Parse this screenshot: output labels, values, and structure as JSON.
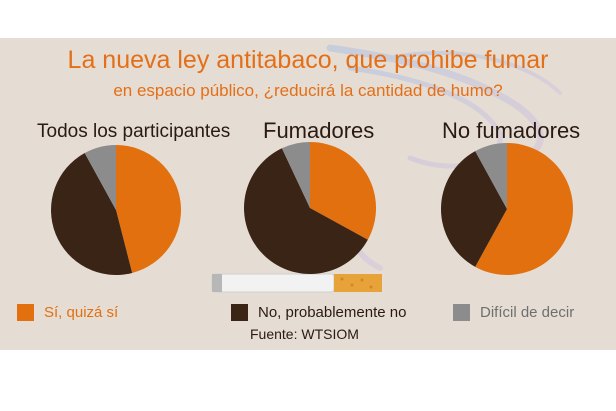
{
  "title": "La nueva ley antitabaco, que prohibe fumar",
  "subtitle": "en espacio público, ¿reducirá la cantidad de humo?",
  "source": "Fuente: WTSIOM",
  "colors": {
    "yes": "#e2700f",
    "no": "#3a2416",
    "hard": "#8c8c8c",
    "background": "#e5ddd4",
    "title": "#e46f17"
  },
  "chart_data": {
    "type": "pie",
    "title": "La nueva ley antitabaco, que prohibe fumar en espacio público, ¿reducirá la cantidad de humo?",
    "legend": [
      "Sí, quizá sí",
      "No, probablemente no",
      "Difícil de decir"
    ],
    "legend_position": "bottom",
    "series_colors": [
      "#e2700f",
      "#3a2416",
      "#8c8c8c"
    ],
    "charts": [
      {
        "label": "Todos los participantes",
        "values": [
          46,
          46,
          8
        ]
      },
      {
        "label": "Fumadores",
        "values": [
          33,
          60,
          7
        ]
      },
      {
        "label": "No fumadores",
        "values": [
          58,
          34,
          8
        ]
      }
    ]
  }
}
